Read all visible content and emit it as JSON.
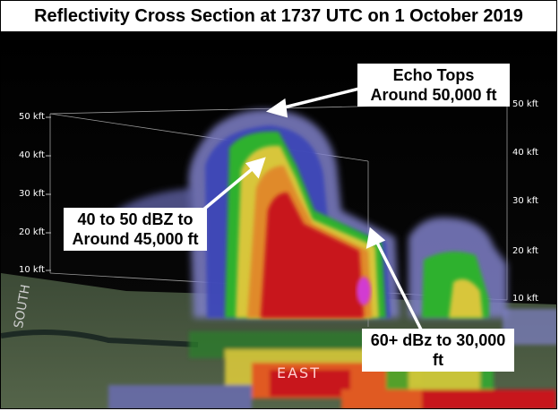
{
  "title": "Reflectivity Cross Section at 1737 UTC on 1 October 2019",
  "callouts": {
    "echo_tops": "Echo Tops Around 50,000 ft",
    "dbz_40_50": "40 to 50 dBZ to Around 45,000 ft",
    "dbz_60": "60+ dBz to 30,000 ft"
  },
  "axis_left": [
    "50 kft",
    "40 kft",
    "30 kft",
    "20 kft",
    "10 kft"
  ],
  "axis_right": [
    "50 kft",
    "40 kft",
    "30 kft",
    "20 kft",
    "10 kft"
  ],
  "map_labels": {
    "south": "SOUTH",
    "east": "EAST"
  },
  "colors": {
    "background": "#000000",
    "ground": "#4d5a45",
    "purple_outer": "#7f80c8",
    "blue": "#3b44b8",
    "green": "#2fb12f",
    "yellow": "#d8c63a",
    "red": "#c8141c",
    "magenta": "#d23ad2"
  }
}
